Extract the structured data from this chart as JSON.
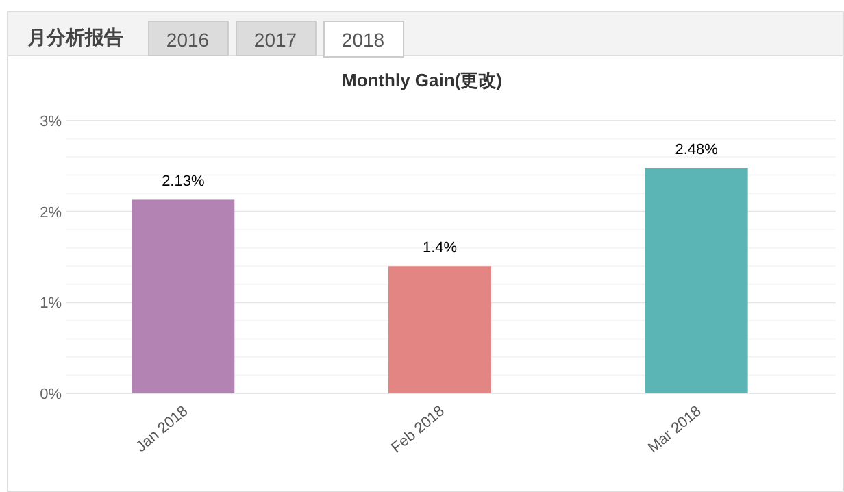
{
  "chart_data": {
    "type": "bar",
    "title": "Monthly Gain(更改)",
    "annotations": [
      "月分析报告",
      "2016",
      "2017",
      "2018"
    ],
    "categories": [
      "Jan 2018",
      "Feb 2018",
      "Mar 2018"
    ],
    "values": [
      2.13,
      1.4,
      2.48
    ],
    "colors": [
      "#b384b3",
      "#e38683",
      "#5bb5b5"
    ],
    "value_labels": [
      "2.13%",
      "1.4%",
      "2.48%"
    ],
    "ylim": [
      0,
      3
    ],
    "yticks": [
      {
        "value": 0,
        "label": "0%"
      },
      {
        "value": 0.2,
        "label": null
      },
      {
        "value": 0.4,
        "label": null
      },
      {
        "value": 0.6,
        "label": null
      },
      {
        "value": 0.8,
        "label": null
      },
      {
        "value": 1,
        "label": "1%"
      },
      {
        "value": 1.2,
        "label": null
      },
      {
        "value": 1.4,
        "label": null
      },
      {
        "value": 1.6,
        "label": null
      },
      {
        "value": 1.8,
        "label": null
      },
      {
        "value": 2,
        "label": "2%"
      },
      {
        "value": 2.2,
        "label": null
      },
      {
        "value": 2.4,
        "label": null
      },
      {
        "value": 2.6,
        "label": null
      },
      {
        "value": 2.8,
        "label": null
      },
      {
        "value": 3,
        "label": "3%"
      }
    ],
    "grid": "y"
  }
}
